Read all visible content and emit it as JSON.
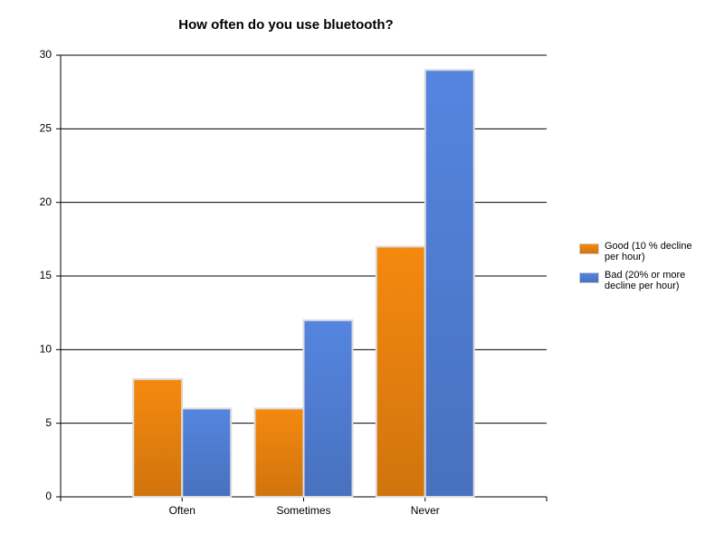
{
  "chart_data": {
    "type": "bar",
    "title": "How often do you use bluetooth?",
    "categories": [
      "Often",
      "Sometimes",
      "Never"
    ],
    "series": [
      {
        "name": "Good (10 % decline per hour)",
        "color": "#f5890f",
        "values": [
          8,
          6,
          17
        ]
      },
      {
        "name": "Bad (20% or more decline per hour)",
        "color": "#5585e0",
        "values": [
          6,
          12,
          29
        ]
      }
    ],
    "ylim": [
      0,
      30
    ],
    "yticks": [
      0,
      5,
      10,
      15,
      20,
      25,
      30
    ],
    "grid": true,
    "legend": "right"
  }
}
